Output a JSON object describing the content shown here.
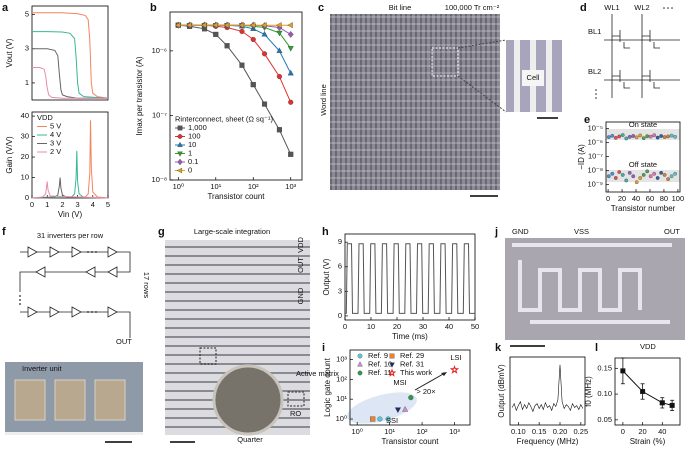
{
  "chart_data": [
    {
      "panel": "a",
      "type": "line",
      "ylabel": "Vout (V)",
      "xlim": [
        0,
        5
      ],
      "ylim": [
        0,
        5.5
      ],
      "yticks": [
        1,
        3,
        5
      ],
      "series": [
        {
          "color": "#f4845f",
          "x": [
            0,
            1,
            2,
            3,
            3.5,
            3.7,
            3.8,
            3.9,
            4.0,
            4.3,
            5
          ],
          "values": [
            5.1,
            5.1,
            5.1,
            5.05,
            4.95,
            4.7,
            3.5,
            1.0,
            0.4,
            0.2,
            0.1
          ]
        },
        {
          "color": "#3ab795",
          "x": [
            0,
            1,
            2,
            2.5,
            2.8,
            2.9,
            3.0,
            3.1,
            3.4,
            5
          ],
          "values": [
            4.0,
            4.0,
            3.98,
            3.9,
            3.6,
            2.5,
            1.0,
            0.4,
            0.2,
            0.1
          ]
        },
        {
          "color": "#666666",
          "x": [
            0,
            1,
            1.5,
            1.7,
            1.8,
            1.9,
            2.0,
            2.3,
            3,
            5
          ],
          "values": [
            3.0,
            3.0,
            2.9,
            2.6,
            1.5,
            0.6,
            0.3,
            0.2,
            0.1,
            0.1
          ]
        },
        {
          "color": "#e88bb0",
          "x": [
            0,
            0.5,
            0.8,
            0.9,
            1.0,
            1.1,
            1.3,
            2,
            5
          ],
          "values": [
            1.9,
            1.9,
            1.8,
            1.4,
            0.7,
            0.3,
            0.15,
            0.1,
            0.1
          ]
        }
      ]
    },
    {
      "type": "line",
      "xlabel": "Vin (V)",
      "ylabel": "Gain (V/V)",
      "xlim": [
        0,
        5
      ],
      "ylim": [
        0,
        42
      ],
      "xticks": [
        0,
        1,
        2,
        3,
        4,
        5
      ],
      "yticks": [
        0,
        10,
        20,
        30,
        40
      ],
      "legend": "upper left",
      "legend_title": "VDD",
      "series": [
        {
          "name": "5 V",
          "color": "#f4845f",
          "x": [
            0,
            3.5,
            3.7,
            3.8,
            3.85,
            3.9,
            4.0,
            4.3,
            5
          ],
          "values": [
            0,
            0.5,
            2,
            12,
            38,
            15,
            3,
            0.5,
            0
          ]
        },
        {
          "name": "4 V",
          "color": "#3ab795",
          "x": [
            0,
            2.6,
            2.8,
            2.9,
            2.95,
            3.0,
            3.1,
            3.4,
            5
          ],
          "values": [
            0,
            0.5,
            2,
            10,
            23,
            8,
            2,
            0.3,
            0
          ]
        },
        {
          "name": "3 V",
          "color": "#666666",
          "x": [
            0,
            1.5,
            1.7,
            1.8,
            1.85,
            1.9,
            2.0,
            2.3,
            5
          ],
          "values": [
            0,
            0.5,
            1.5,
            6,
            10,
            5,
            1.5,
            0.3,
            0
          ]
        },
        {
          "name": "2 V",
          "color": "#e88bb0",
          "x": [
            0,
            0.7,
            0.9,
            0.95,
            1.0,
            1.05,
            1.2,
            5
          ],
          "values": [
            0,
            0.5,
            2,
            5,
            8,
            4,
            1,
            0
          ]
        }
      ]
    },
    {
      "panel": "b",
      "type": "line",
      "xlabel": "Transistor count",
      "ylabel": "Imax per transistor (A)",
      "xlog": true,
      "ylog": true,
      "xlim": [
        0.6,
        2000
      ],
      "ylim": [
        1e-08,
        4e-06
      ],
      "xticks": [
        {
          "value": 1,
          "label": "10⁰"
        },
        {
          "value": 10,
          "label": "10¹"
        },
        {
          "value": 100,
          "label": "10²"
        },
        {
          "value": 1000,
          "label": "10³"
        }
      ],
      "yticks": [
        {
          "value": 1e-08,
          "label": "10⁻⁸"
        },
        {
          "value": 1e-07,
          "label": "10⁻⁷"
        },
        {
          "value": 1e-06,
          "label": "10⁻⁶"
        }
      ],
      "legend": "lower left",
      "legend_title": "Rinterconnect, sheet (Ω sq⁻¹)",
      "x": [
        1,
        2,
        5,
        10,
        20,
        50,
        100,
        200,
        500,
        1000
      ],
      "series": [
        {
          "name": "1,000",
          "color": "#555555",
          "marker": "square",
          "values": [
            2.5e-06,
            2.4e-06,
            2.2e-06,
            1.8e-06,
            1.2e-06,
            6e-07,
            3e-07,
            1.5e-07,
            6e-08,
            2.5e-08
          ]
        },
        {
          "name": "100",
          "color": "#e03030",
          "marker": "circle",
          "values": [
            2.5e-06,
            2.5e-06,
            2.5e-06,
            2.4e-06,
            2.3e-06,
            2e-06,
            1.5e-06,
            9e-07,
            4e-07,
            1.6e-07
          ]
        },
        {
          "name": "10",
          "color": "#1f77b4",
          "marker": "triangle",
          "values": [
            2.5e-06,
            2.5e-06,
            2.5e-06,
            2.5e-06,
            2.5e-06,
            2.4e-06,
            2.2e-06,
            1.8e-06,
            1e-06,
            4.5e-07
          ]
        },
        {
          "name": "1",
          "color": "#2ca02c",
          "marker": "triangle-down",
          "values": [
            2.5e-06,
            2.5e-06,
            2.5e-06,
            2.5e-06,
            2.5e-06,
            2.5e-06,
            2.4e-06,
            2.3e-06,
            1.9e-06,
            1.1e-06
          ]
        },
        {
          "name": "0.1",
          "color": "#9b59b6",
          "marker": "diamond",
          "values": [
            2.5e-06,
            2.5e-06,
            2.5e-06,
            2.5e-06,
            2.5e-06,
            2.5e-06,
            2.5e-06,
            2.45e-06,
            2.3e-06,
            1.8e-06
          ]
        },
        {
          "name": "0",
          "color": "#e0a020",
          "marker": "triangle-left",
          "values": [
            2.5e-06,
            2.5e-06,
            2.5e-06,
            2.5e-06,
            2.5e-06,
            2.5e-06,
            2.5e-06,
            2.5e-06,
            2.5e-06,
            2.5e-06
          ]
        }
      ]
    },
    {
      "panel": "e",
      "type": "scatter",
      "xlabel": "Transistor number",
      "ylabel": "−ID (A)",
      "ylog": true,
      "xlim": [
        -3,
        103
      ],
      "ylim": [
        3e-10,
        3e-05
      ],
      "xticks": [
        0,
        20,
        40,
        60,
        80,
        100
      ],
      "yticks": [
        {
          "value": 1e-09,
          "label": "10⁻⁹"
        },
        {
          "value": 1e-08,
          "label": "10⁻⁸"
        },
        {
          "value": 1e-07,
          "label": "10⁻⁷"
        },
        {
          "value": 1e-06,
          "label": "10⁻⁶"
        },
        {
          "value": 1e-05,
          "label": "10⁻⁵"
        }
      ],
      "colors": [
        "#4a90d9",
        "#e05050",
        "#40b0a0",
        "#9060c0",
        "#e0a030",
        "#50a050",
        "#e070b0",
        "#3060a0",
        "#d08040",
        "#60c0d0"
      ],
      "x": [
        1,
        6,
        11,
        16,
        21,
        26,
        31,
        36,
        41,
        46,
        51,
        56,
        61,
        66,
        71,
        76,
        81,
        86,
        91,
        96
      ],
      "series": [
        {
          "name": "On state",
          "marker": "circle",
          "values": [
            2.5e-06,
            3.1e-06,
            2.2e-06,
            2.8e-06,
            3.5e-06,
            2e-06,
            2.6e-06,
            3e-06,
            2.4e-06,
            3.3e-06,
            2.1e-06,
            2.9e-06,
            2.7e-06,
            3.4e-06,
            2.3e-06,
            3e-06,
            2.5e-06,
            2.8e-06,
            3.2e-06,
            2.6e-06
          ]
        },
        {
          "name": "Off state",
          "marker": "circle",
          "values": [
            4e-09,
            6e-09,
            3e-09,
            8e-09,
            5e-09,
            2e-09,
            7e-09,
            4e-09,
            1.5e-09,
            3e-09,
            5e-09,
            9e-09,
            4e-09,
            6e-09,
            3e-09,
            7e-09,
            5e-09,
            2.5e-09,
            4e-09,
            6e-09
          ]
        }
      ]
    },
    {
      "panel": "h",
      "type": "line",
      "xlabel": "Time (ms)",
      "ylabel": "Output (V)",
      "xlim": [
        0,
        50
      ],
      "ylim": [
        -0.5,
        10
      ],
      "xticks": [
        0,
        10,
        20,
        30,
        40,
        50
      ],
      "yticks": [
        0,
        3,
        6,
        9
      ],
      "x": [
        0,
        0.5,
        0.9,
        2.5,
        2.9,
        5.0,
        5.4,
        7.0,
        7.4,
        9.5,
        9.9,
        11.5,
        11.9,
        14,
        14.4,
        16,
        16.4,
        18.5,
        18.9,
        20.5,
        20.9,
        23,
        23.4,
        25,
        25.4,
        27.5,
        27.9,
        29.5,
        29.9,
        32,
        32.4,
        34,
        34.4,
        36.5,
        36.9,
        38.5,
        38.9,
        41,
        41.4,
        43,
        43.4,
        45.5,
        45.9,
        47.5,
        47.9,
        50
      ],
      "series": [
        {
          "color": "#555555",
          "values": [
            0.3,
            0.3,
            8.8,
            8.8,
            0.3,
            0.3,
            8.8,
            8.8,
            0.3,
            0.3,
            8.8,
            8.8,
            0.3,
            0.3,
            8.8,
            8.8,
            0.3,
            0.3,
            8.8,
            8.8,
            0.3,
            0.3,
            8.8,
            8.8,
            0.3,
            0.3,
            8.8,
            8.8,
            0.3,
            0.3,
            8.8,
            8.8,
            0.3,
            0.3,
            8.8,
            8.8,
            0.3,
            0.3,
            8.8,
            8.8,
            0.3,
            0.3,
            8.8,
            8.8,
            0.3,
            0.3
          ]
        }
      ]
    },
    {
      "panel": "i",
      "type": "scatter",
      "xlabel": "Transistor count",
      "ylabel": "Logic gate count",
      "xlog": true,
      "ylog": true,
      "xlim": [
        0.6,
        3000
      ],
      "ylim": [
        0.5,
        3000
      ],
      "xticks": [
        {
          "value": 1,
          "label": "10⁰"
        },
        {
          "value": 10,
          "label": "10¹"
        },
        {
          "value": 100,
          "label": "10²"
        },
        {
          "value": 1000,
          "label": "10³"
        }
      ],
      "yticks": [
        {
          "value": 1,
          "label": "10⁰"
        },
        {
          "value": 10,
          "label": "10¹"
        },
        {
          "value": 100,
          "label": "10²"
        },
        {
          "value": 1000,
          "label": "10³"
        }
      ],
      "legend": "upper left",
      "annotations": [
        "SSI",
        "MSI",
        "LSI",
        "> 20×"
      ],
      "series": [
        {
          "name": "Ref. 9",
          "color": "#5bc8d8",
          "marker": "circle",
          "x": [
            5,
            9
          ],
          "values": [
            1,
            1
          ]
        },
        {
          "name": "Ref. 29",
          "color": "#f08030",
          "marker": "square",
          "x": [
            3
          ],
          "values": [
            1
          ]
        },
        {
          "name": "Ref. 10",
          "color": "#c990d8",
          "marker": "triangle",
          "x": [
            30
          ],
          "values": [
            3
          ]
        },
        {
          "name": "Ref. 31",
          "color": "#1a2a6a",
          "marker": "triangle-down",
          "x": [
            18
          ],
          "values": [
            3
          ]
        },
        {
          "name": "Ref. 11",
          "color": "#2e9a4a",
          "marker": "circle",
          "x": [
            45
          ],
          "values": [
            12
          ]
        },
        {
          "name": "This work",
          "color": "#e02020",
          "marker": "star",
          "hollow": true,
          "x": [
            1000
          ],
          "values": [
            300
          ]
        }
      ]
    },
    {
      "panel": "k",
      "type": "line",
      "xlabel": "Frequency (MHz)",
      "ylabel": "Output (dBmV)",
      "xlim": [
        0.08,
        0.26
      ],
      "ylim": [
        -100,
        -30
      ],
      "xticks": [
        {
          "value": 0.1,
          "label": "0.10"
        },
        0.15,
        {
          "value": 0.2,
          "label": "0.20"
        },
        0.25
      ],
      "x": [
        0.085,
        0.09,
        0.095,
        0.1,
        0.105,
        0.11,
        0.115,
        0.12,
        0.125,
        0.13,
        0.135,
        0.14,
        0.145,
        0.15,
        0.155,
        0.16,
        0.165,
        0.17,
        0.175,
        0.18,
        0.185,
        0.19,
        0.195,
        0.2,
        0.205,
        0.21,
        0.215,
        0.22,
        0.225,
        0.23,
        0.235,
        0.24,
        0.245,
        0.25,
        0.255
      ],
      "series": [
        {
          "color": "#111111",
          "values": [
            -82,
            -78,
            -85,
            -80,
            -76,
            -84,
            -79,
            -83,
            -77,
            -81,
            -86,
            -80,
            -78,
            -83,
            -79,
            -84,
            -77,
            -82,
            -80,
            -85,
            -78,
            -81,
            -74,
            -38,
            -76,
            -83,
            -79,
            -81,
            -85,
            -78,
            -82,
            -80,
            -84,
            -79,
            -83
          ]
        }
      ]
    },
    {
      "panel": "l",
      "type": "line",
      "xlabel": "Strain (%)",
      "ylabel": "f0 (MHz)",
      "xlim": [
        -8,
        58
      ],
      "ylim": [
        0.04,
        0.17
      ],
      "xticks": [
        0,
        20,
        40
      ],
      "yticks": [
        0.05,
        {
          "value": 0.1,
          "label": "0.10"
        },
        0.15
      ],
      "x": [
        0,
        20,
        40,
        50
      ],
      "series": [
        {
          "color": "#111111",
          "marker": "square",
          "values": [
            0.145,
            0.105,
            0.083,
            0.078
          ],
          "errors": [
            0.025,
            0.015,
            0.01,
            0.01
          ]
        }
      ]
    }
  ],
  "panels": {
    "c": {
      "label": "c",
      "bit_line": "Bit line",
      "density": "100,000 Tr cm⁻²",
      "word_line": "Word line",
      "cell": "Cell"
    },
    "d": {
      "label": "d",
      "wl1": "WL1",
      "wl2": "WL2",
      "bl1": "BL1",
      "bl2": "BL2"
    },
    "f": {
      "label": "f",
      "title": "31 inverters per row",
      "rows": "17 rows",
      "out": "OUT",
      "unit": "Inverter unit"
    },
    "g": {
      "label": "g",
      "title": "Large-scale integration",
      "out": "OUT",
      "vdd": "VDD",
      "gnd": "GND",
      "active": "Active matrix",
      "ro": "RO",
      "quarter": "Quarter"
    },
    "j": {
      "label": "j",
      "gnd": "GND",
      "vss": "VSS",
      "out": "OUT",
      "vdd": "VDD"
    }
  }
}
